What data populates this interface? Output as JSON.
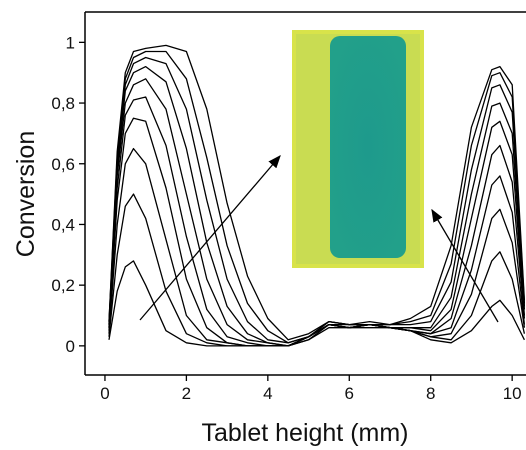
{
  "chart_data": {
    "type": "line",
    "x_label": "Tablet height (mm)",
    "y_label": "Conversion",
    "xlim": [
      -0.49,
      10.34
    ],
    "ylim": [
      -0.096,
      1.1
    ],
    "xticks": [
      0,
      2,
      4,
      6,
      8,
      10
    ],
    "yticks": [
      0,
      {
        "value": 0.2,
        "label": "0,2"
      },
      {
        "value": 0.4,
        "label": "0,4"
      },
      {
        "value": 0.6,
        "label": "0,6"
      },
      {
        "value": 0.8,
        "label": "0,8"
      },
      1
    ],
    "x": [
      0.1,
      0.3,
      0.5,
      0.7,
      1,
      1.5,
      2,
      2.5,
      3,
      3.5,
      4,
      4.5,
      5,
      5.5,
      6,
      6.5,
      7,
      7.5,
      8,
      8.5,
      9,
      9.5,
      9.7,
      10,
      10.3
    ],
    "series": [
      {
        "color": "#000000",
        "values": [
          0.02,
          0.18,
          0.26,
          0.28,
          0.2,
          0.05,
          0.01,
          0,
          0,
          0,
          0,
          0,
          0.02,
          0.06,
          0.06,
          0.06,
          0.06,
          0.05,
          0.02,
          0.01,
          0.05,
          0.13,
          0.15,
          0.1,
          0.02
        ]
      },
      {
        "color": "#000000",
        "values": [
          0.03,
          0.3,
          0.46,
          0.5,
          0.42,
          0.18,
          0.04,
          0.01,
          0,
          0,
          0,
          0,
          0.02,
          0.07,
          0.06,
          0.07,
          0.06,
          0.05,
          0.03,
          0.02,
          0.1,
          0.28,
          0.31,
          0.22,
          0.04
        ]
      },
      {
        "color": "#000000",
        "values": [
          0.04,
          0.4,
          0.6,
          0.65,
          0.6,
          0.35,
          0.1,
          0.02,
          0.01,
          0,
          0,
          0,
          0.03,
          0.07,
          0.06,
          0.07,
          0.06,
          0.05,
          0.03,
          0.04,
          0.17,
          0.42,
          0.45,
          0.34,
          0.06
        ]
      },
      {
        "color": "#000000",
        "values": [
          0.05,
          0.48,
          0.7,
          0.75,
          0.74,
          0.52,
          0.22,
          0.06,
          0.01,
          0,
          0,
          0,
          0.03,
          0.07,
          0.06,
          0.07,
          0.06,
          0.05,
          0.04,
          0.06,
          0.25,
          0.53,
          0.56,
          0.44,
          0.07
        ]
      },
      {
        "color": "#000000",
        "values": [
          0.06,
          0.52,
          0.76,
          0.81,
          0.82,
          0.66,
          0.36,
          0.12,
          0.03,
          0.01,
          0,
          0,
          0.03,
          0.07,
          0.06,
          0.07,
          0.06,
          0.05,
          0.04,
          0.09,
          0.33,
          0.63,
          0.66,
          0.54,
          0.09
        ]
      },
      {
        "color": "#000000",
        "values": [
          0.06,
          0.56,
          0.8,
          0.86,
          0.88,
          0.78,
          0.5,
          0.22,
          0.07,
          0.02,
          0.01,
          0,
          0.03,
          0.07,
          0.06,
          0.07,
          0.06,
          0.06,
          0.05,
          0.12,
          0.42,
          0.72,
          0.74,
          0.63,
          0.1
        ]
      },
      {
        "color": "#000000",
        "values": [
          0.07,
          0.58,
          0.84,
          0.9,
          0.92,
          0.87,
          0.65,
          0.34,
          0.13,
          0.04,
          0.01,
          0,
          0.03,
          0.07,
          0.07,
          0.07,
          0.06,
          0.06,
          0.06,
          0.16,
          0.5,
          0.79,
          0.8,
          0.7,
          0.12
        ]
      },
      {
        "color": "#000000",
        "values": [
          0.07,
          0.6,
          0.86,
          0.93,
          0.95,
          0.93,
          0.78,
          0.48,
          0.22,
          0.08,
          0.02,
          0.01,
          0.03,
          0.08,
          0.07,
          0.07,
          0.07,
          0.07,
          0.08,
          0.21,
          0.58,
          0.85,
          0.86,
          0.77,
          0.13
        ]
      },
      {
        "color": "#000000",
        "values": [
          0.08,
          0.62,
          0.88,
          0.95,
          0.97,
          0.97,
          0.88,
          0.62,
          0.33,
          0.14,
          0.05,
          0.01,
          0.03,
          0.08,
          0.07,
          0.07,
          0.07,
          0.08,
          0.1,
          0.27,
          0.66,
          0.89,
          0.9,
          0.82,
          0.14
        ]
      },
      {
        "color": "#000000",
        "values": [
          0.08,
          0.64,
          0.9,
          0.97,
          0.98,
          0.99,
          0.97,
          0.78,
          0.47,
          0.23,
          0.09,
          0.02,
          0.04,
          0.08,
          0.07,
          0.08,
          0.07,
          0.09,
          0.13,
          0.33,
          0.72,
          0.91,
          0.92,
          0.86,
          0.15
        ]
      }
    ]
  }
}
